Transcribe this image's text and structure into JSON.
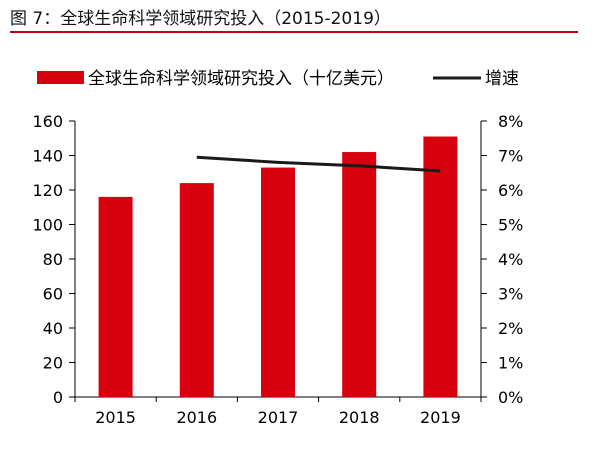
{
  "figure_title": "图 7：全球生命科学领域研究投入（2015-2019）",
  "colors": {
    "bar": "#d7000f",
    "line": "#1a1a1a",
    "rule": "#c0001a"
  },
  "chart_data": {
    "type": "bar",
    "categories": [
      "2015",
      "2016",
      "2017",
      "2018",
      "2019"
    ],
    "series": [
      {
        "name": "全球生命科学领域研究投入（十亿美元）",
        "type": "bar",
        "axis": "left",
        "values": [
          116,
          124,
          133,
          142,
          151
        ]
      },
      {
        "name": "增速",
        "type": "line",
        "axis": "right",
        "values": [
          null,
          6.95,
          6.8,
          6.7,
          6.55
        ]
      }
    ],
    "y_left": {
      "min": 0,
      "max": 160,
      "ticks": [
        "0",
        "20",
        "40",
        "60",
        "80",
        "100",
        "120",
        "140",
        "160"
      ]
    },
    "y_right": {
      "min": 0,
      "max": 8,
      "ticks": [
        "0%",
        "1%",
        "2%",
        "3%",
        "4%",
        "5%",
        "6%",
        "7%",
        "8%"
      ]
    },
    "legend": "top",
    "grid": false
  }
}
